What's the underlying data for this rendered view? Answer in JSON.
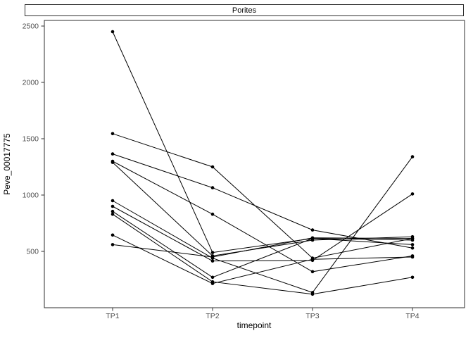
{
  "chart_data": {
    "type": "line",
    "title": "Porites",
    "xlabel": "timepoint",
    "ylabel": "Peve_00017775",
    "categories": [
      "TP1",
      "TP2",
      "TP3",
      "TP4"
    ],
    "yticks": [
      500,
      1000,
      1500,
      2000,
      2500
    ],
    "ylim": [
      0,
      2550
    ],
    "grid": false,
    "legend": "none",
    "marker": "point",
    "line_color": "#000000",
    "point_color": "#000000",
    "series": [
      {
        "values": [
          2450,
          490,
          615,
          600
        ]
      },
      {
        "values": [
          1545,
          1250,
          440,
          615
        ]
      },
      {
        "values": [
          1365,
          1065,
          690,
          530
        ]
      },
      {
        "values": [
          1300,
          830,
          320,
          460
        ]
      },
      {
        "values": [
          1290,
          460,
          600,
          630
        ]
      },
      {
        "values": [
          950,
          440,
          135,
          1340
        ]
      },
      {
        "values": [
          900,
          415,
          420,
          1010
        ]
      },
      {
        "values": [
          855,
          270,
          615,
          560
        ]
      },
      {
        "values": [
          830,
          230,
          120,
          270
        ]
      },
      {
        "values": [
          645,
          215,
          430,
          450
        ]
      },
      {
        "values": [
          560,
          450,
          620,
          615
        ]
      }
    ]
  }
}
